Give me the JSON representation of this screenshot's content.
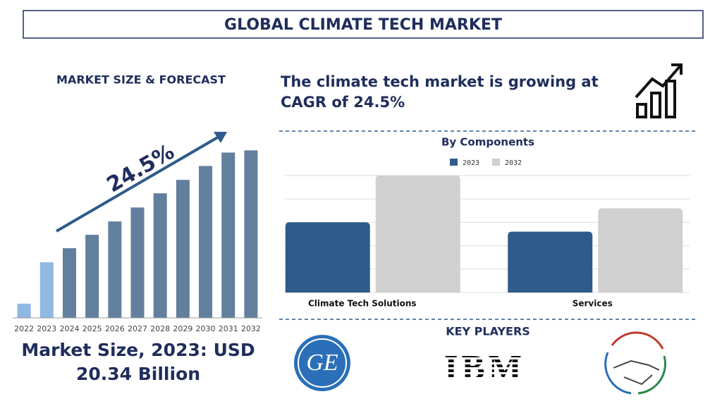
{
  "title": "GLOBAL CLIMATE TECH MARKET",
  "headline": "The climate tech market is growing at CAGR of 24.5%",
  "market_size": "Market Size, 2023: USD 20.34 Billion",
  "key_players_title": "KEY PLAYERS",
  "key_players": [
    "GE",
    "IBM"
  ],
  "chart_data": [
    {
      "type": "bar",
      "title": "MARKET SIZE & FORECAST",
      "annotation": "24.5%",
      "categories": [
        "2022",
        "2023",
        "2024",
        "2025",
        "2026",
        "2027",
        "2028",
        "2029",
        "2030",
        "2031",
        "2032"
      ],
      "values": [
        5.2,
        20.34,
        25.5,
        30.4,
        35.3,
        40.4,
        45.6,
        50.5,
        55.6,
        60.5,
        61.3
      ],
      "colors": [
        "#8fb8e2",
        "#8fb8e2",
        "#627f9e",
        "#627f9e",
        "#627f9e",
        "#627f9e",
        "#627f9e",
        "#627f9e",
        "#627f9e",
        "#627f9e",
        "#627f9e"
      ],
      "ylim": [
        0,
        65
      ]
    },
    {
      "type": "grouped_bar",
      "title": "By Components",
      "categories": [
        "Climate Tech Solutions",
        "Services"
      ],
      "series": [
        {
          "name": "2023",
          "color": "#2e5b8a",
          "values": [
            3,
            2.6
          ]
        },
        {
          "name": "2032",
          "color": "#d0d0d0",
          "values": [
            5,
            3.6
          ]
        }
      ],
      "ylim": [
        0,
        5
      ],
      "yticks": [
        0,
        1,
        2,
        3,
        4,
        5
      ],
      "grid": true,
      "tick_labels": false,
      "legend": "top"
    }
  ]
}
